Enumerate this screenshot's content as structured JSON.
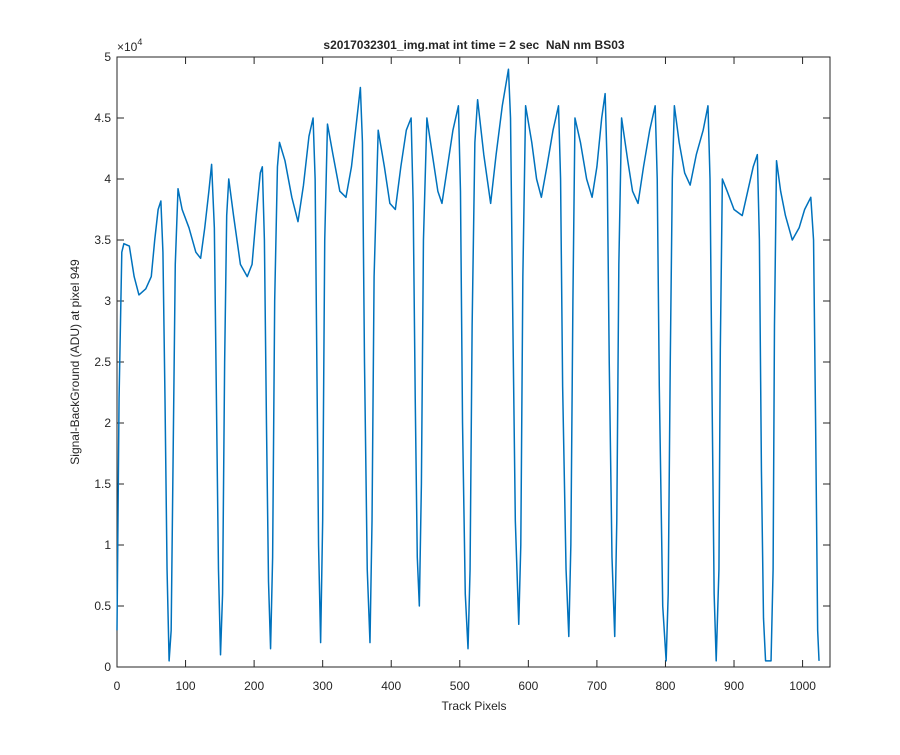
{
  "chart_data": {
    "type": "line",
    "title": "s2017032301_img.mat int time = 2 sec  NaN nm BS03",
    "x_label": "Track Pixels",
    "y_label": "Signal-BackGround (ADU) at pixel 949",
    "y_multiplier": {
      "base": "×10",
      "exponent": "4"
    },
    "color": "#0072bd",
    "xlim": [
      0,
      1040
    ],
    "xticks": [
      0,
      100,
      200,
      300,
      400,
      500,
      600,
      700,
      800,
      900,
      1000
    ],
    "ylim": [
      0,
      5
    ],
    "yticks": [
      0,
      0.5,
      1,
      1.5,
      2,
      2.5,
      3,
      3.5,
      4,
      4.5,
      5
    ],
    "x": [
      0,
      3,
      7,
      10,
      18,
      25,
      32,
      42,
      50,
      55,
      60,
      64,
      67,
      70,
      73,
      76,
      79,
      82,
      85,
      89,
      95,
      105,
      115,
      122,
      128,
      134,
      138,
      142,
      145,
      148,
      151,
      154,
      157,
      160,
      163,
      170,
      180,
      190,
      197,
      203,
      209,
      212,
      215,
      218,
      221,
      224,
      227,
      230,
      234,
      237,
      245,
      255,
      264,
      272,
      280,
      286,
      289,
      291,
      294,
      297,
      300,
      303,
      307,
      315,
      325,
      334,
      342,
      350,
      355,
      358,
      361,
      365,
      369,
      372,
      375,
      381,
      390,
      398,
      406,
      414,
      422,
      429,
      432,
      435,
      438,
      441,
      444,
      447,
      452,
      460,
      468,
      474,
      482,
      490,
      498,
      501,
      504,
      508,
      512,
      515,
      518,
      522,
      526,
      535,
      545,
      553,
      562,
      571,
      574,
      577,
      581,
      586,
      589,
      592,
      596,
      605,
      612,
      619,
      627,
      636,
      644,
      647,
      650,
      655,
      659,
      662,
      665,
      668,
      676,
      685,
      693,
      700,
      707,
      712,
      715,
      718,
      722,
      726,
      729,
      732,
      736,
      745,
      752,
      760,
      768,
      777,
      785,
      788,
      791,
      796,
      801,
      804,
      807,
      810,
      813,
      820,
      828,
      836,
      845,
      855,
      862,
      865,
      868,
      871,
      874,
      878,
      880,
      883,
      890,
      900,
      912,
      920,
      928,
      934,
      937,
      940,
      943,
      946,
      954,
      957,
      959,
      962,
      968,
      975,
      985,
      995,
      1003,
      1012,
      1016,
      1019,
      1022,
      1024
    ],
    "values": [
      0.3,
      2.2,
      3.4,
      3.47,
      3.45,
      3.2,
      3.05,
      3.1,
      3.2,
      3.5,
      3.75,
      3.82,
      3.4,
      2.2,
      0.8,
      0.05,
      0.3,
      1.8,
      3.3,
      3.92,
      3.75,
      3.6,
      3.4,
      3.35,
      3.6,
      3.9,
      4.12,
      3.6,
      2.2,
      0.8,
      0.1,
      0.6,
      2.5,
      3.7,
      4.0,
      3.7,
      3.3,
      3.2,
      3.3,
      3.7,
      4.05,
      4.1,
      3.5,
      2.0,
      0.7,
      0.15,
      0.9,
      3.0,
      4.1,
      4.3,
      4.15,
      3.85,
      3.65,
      3.95,
      4.35,
      4.5,
      4.0,
      2.8,
      1.0,
      0.2,
      1.2,
      3.5,
      4.45,
      4.2,
      3.9,
      3.85,
      4.1,
      4.5,
      4.75,
      4.3,
      2.5,
      0.8,
      0.2,
      1.2,
      3.2,
      4.4,
      4.1,
      3.8,
      3.75,
      4.1,
      4.4,
      4.5,
      3.8,
      2.2,
      0.9,
      0.5,
      1.5,
      3.5,
      4.5,
      4.2,
      3.9,
      3.8,
      4.1,
      4.4,
      4.6,
      3.9,
      2.0,
      0.6,
      0.15,
      0.8,
      2.8,
      4.3,
      4.65,
      4.2,
      3.8,
      4.2,
      4.6,
      4.9,
      4.5,
      3.0,
      1.2,
      0.35,
      1.0,
      3.2,
      4.6,
      4.3,
      4.0,
      3.85,
      4.1,
      4.4,
      4.6,
      4.0,
      2.3,
      0.8,
      0.25,
      1.0,
      3.0,
      4.5,
      4.3,
      4.0,
      3.85,
      4.1,
      4.5,
      4.7,
      4.1,
      2.5,
      0.9,
      0.25,
      1.2,
      3.3,
      4.5,
      4.15,
      3.9,
      3.8,
      4.1,
      4.4,
      4.6,
      4.0,
      2.3,
      0.5,
      0.05,
      0.6,
      2.5,
      4.0,
      4.6,
      4.3,
      4.05,
      3.95,
      4.2,
      4.4,
      4.6,
      4.0,
      2.2,
      0.6,
      0.05,
      0.8,
      2.6,
      4.0,
      3.9,
      3.75,
      3.7,
      3.9,
      4.1,
      4.2,
      3.5,
      1.6,
      0.4,
      0.05,
      0.05,
      0.8,
      2.8,
      4.15,
      3.9,
      3.7,
      3.5,
      3.6,
      3.75,
      3.85,
      3.5,
      2.0,
      0.3,
      0.05
    ]
  }
}
